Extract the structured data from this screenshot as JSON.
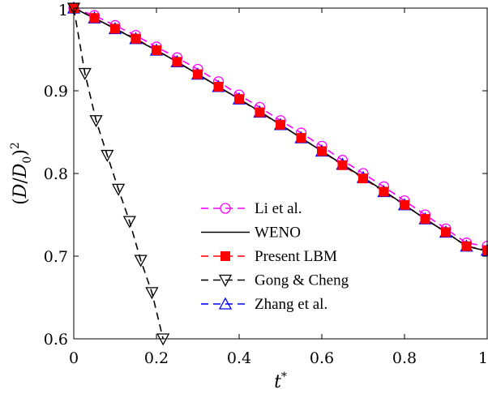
{
  "chart_data": {
    "type": "line",
    "xlabel": "t*",
    "ylabel": "(D/D0)²",
    "xlim": [
      0,
      1
    ],
    "ylim": [
      0.6,
      1
    ],
    "xticks": [
      0,
      0.2,
      0.4,
      0.6,
      0.8,
      1
    ],
    "xtick_labels": [
      "0",
      "0.2",
      "0.4",
      "0.6",
      "0.8",
      "1"
    ],
    "yticks": [
      0.6,
      0.7,
      0.8,
      0.9,
      1
    ],
    "ytick_labels": [
      "0.6",
      "0.7",
      "0.8",
      "0.9",
      "1"
    ],
    "legend_position": "lower-center",
    "series": [
      {
        "name": "Li et al.",
        "color": "#ff00ff",
        "line": "dashed",
        "marker": "circle",
        "x": [
          0,
          0.05,
          0.1,
          0.15,
          0.2,
          0.25,
          0.3,
          0.35,
          0.4,
          0.45,
          0.5,
          0.55,
          0.6,
          0.65,
          0.7,
          0.75,
          0.8,
          0.85,
          0.9,
          0.95,
          1.0
        ],
        "y": [
          1.0,
          0.991,
          0.979,
          0.967,
          0.953,
          0.94,
          0.926,
          0.911,
          0.895,
          0.88,
          0.864,
          0.849,
          0.833,
          0.816,
          0.8,
          0.784,
          0.767,
          0.75,
          0.733,
          0.716,
          0.712
        ]
      },
      {
        "name": "WENO",
        "color": "#000000",
        "line": "solid",
        "marker": "none",
        "x": [
          0,
          0.05,
          0.1,
          0.15,
          0.2,
          0.25,
          0.3,
          0.35,
          0.4,
          0.45,
          0.5,
          0.55,
          0.6,
          0.65,
          0.7,
          0.75,
          0.8,
          0.85,
          0.9,
          0.95,
          1.0
        ],
        "y": [
          1.0,
          0.988,
          0.975,
          0.962,
          0.949,
          0.935,
          0.92,
          0.905,
          0.89,
          0.875,
          0.859,
          0.843,
          0.827,
          0.811,
          0.795,
          0.779,
          0.762,
          0.745,
          0.729,
          0.712,
          0.706
        ]
      },
      {
        "name": "Present LBM",
        "color": "#ff0000",
        "line": "dashed",
        "marker": "square",
        "x": [
          0,
          0.05,
          0.1,
          0.15,
          0.2,
          0.25,
          0.3,
          0.35,
          0.4,
          0.45,
          0.5,
          0.55,
          0.6,
          0.65,
          0.7,
          0.75,
          0.8,
          0.85,
          0.9,
          0.95,
          1.0
        ],
        "y": [
          1.0,
          0.988,
          0.975,
          0.963,
          0.949,
          0.935,
          0.92,
          0.905,
          0.89,
          0.874,
          0.859,
          0.843,
          0.827,
          0.81,
          0.794,
          0.778,
          0.762,
          0.745,
          0.729,
          0.712,
          0.707
        ]
      },
      {
        "name": "Gong & Cheng",
        "color": "#000000",
        "line": "dashed",
        "marker": "triangle-down",
        "x": [
          0,
          0.027,
          0.054,
          0.081,
          0.108,
          0.135,
          0.162,
          0.189,
          0.216
        ],
        "y": [
          1.0,
          0.921,
          0.864,
          0.822,
          0.781,
          0.742,
          0.695,
          0.656,
          0.6
        ]
      },
      {
        "name": "Zhang et al.",
        "color": "#0000ff",
        "line": "dashed",
        "marker": "triangle-up",
        "x": [
          0,
          0.05,
          0.1,
          0.15,
          0.2,
          0.25,
          0.3,
          0.35,
          0.4,
          0.45,
          0.5,
          0.55,
          0.6,
          0.65,
          0.7,
          0.75,
          0.8,
          0.85,
          0.9,
          0.95,
          1.0
        ],
        "y": [
          1.0,
          0.988,
          0.975,
          0.963,
          0.949,
          0.935,
          0.92,
          0.905,
          0.89,
          0.874,
          0.859,
          0.843,
          0.827,
          0.811,
          0.795,
          0.778,
          0.762,
          0.745,
          0.729,
          0.712,
          0.707
        ]
      }
    ]
  }
}
